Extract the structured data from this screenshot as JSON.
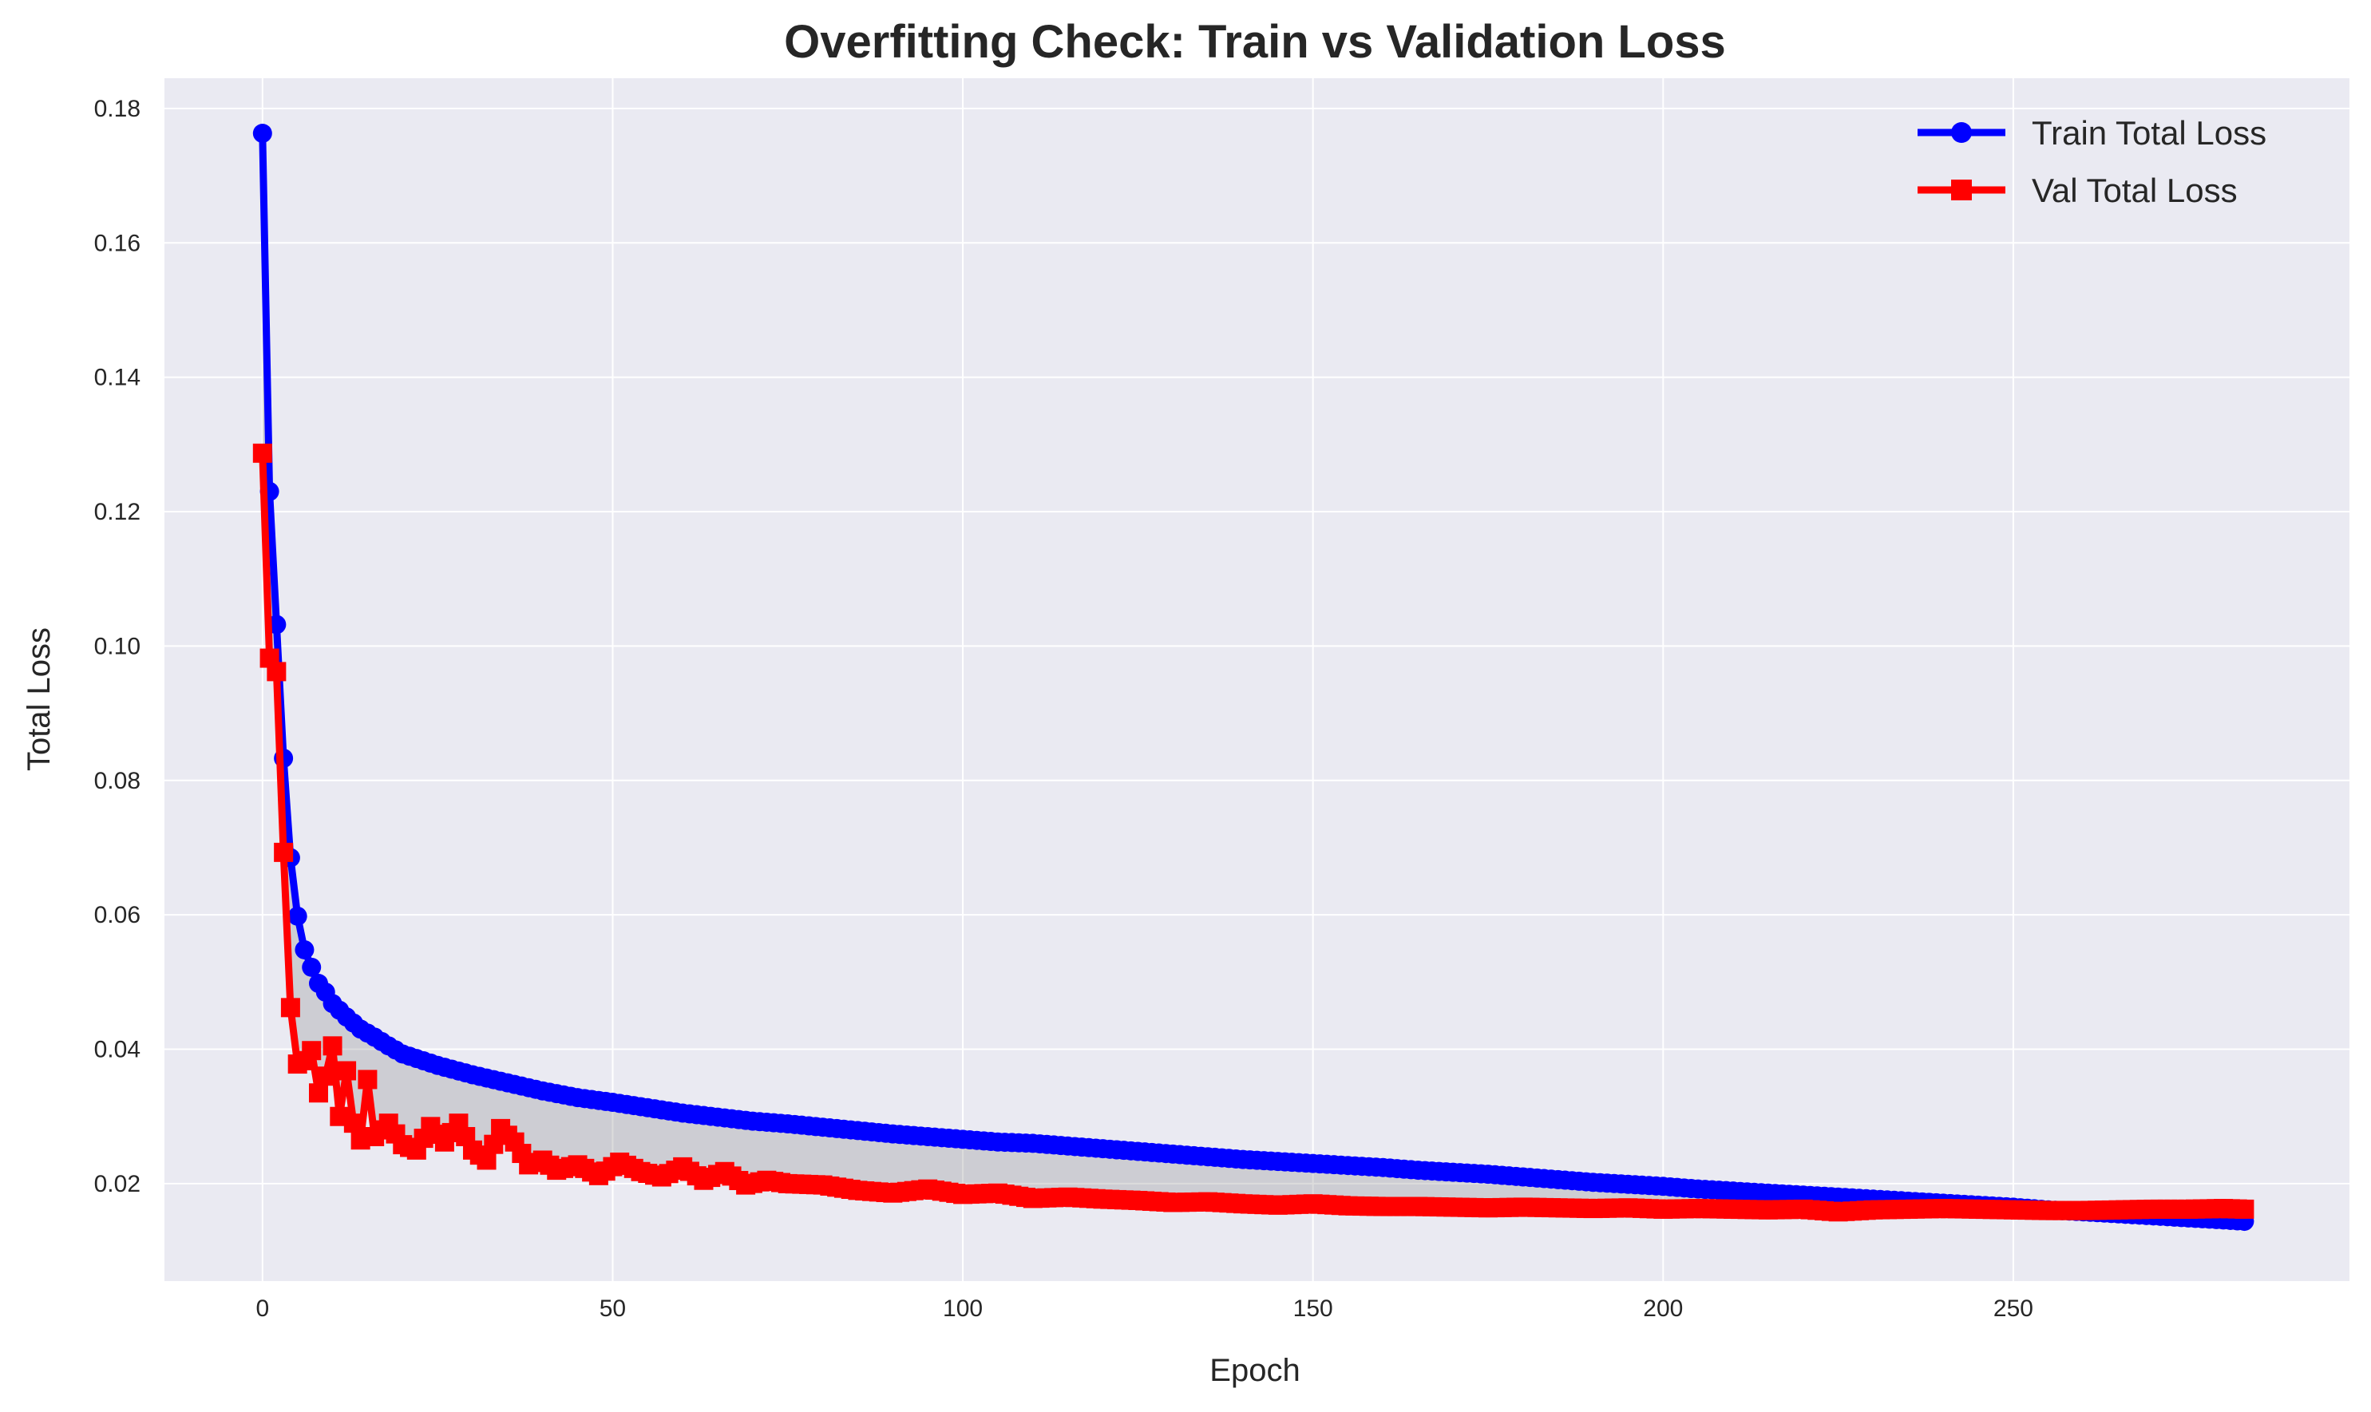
{
  "chart_data": {
    "type": "line",
    "title": "Overfitting Check: Train vs Validation Loss",
    "xlabel": "Epoch",
    "ylabel": "Total Loss",
    "xlim": [
      -14,
      298
    ],
    "ylim": [
      0.0055,
      0.1845
    ],
    "xticks": [
      0,
      50,
      100,
      150,
      200,
      250
    ],
    "yticks": [
      0.02,
      0.04,
      0.06,
      0.08,
      0.1,
      0.12,
      0.14,
      0.16,
      0.18
    ],
    "ytick_labels": [
      "0.02",
      "0.04",
      "0.06",
      "0.08",
      "0.10",
      "0.12",
      "0.14",
      "0.16",
      "0.18"
    ],
    "grid": true,
    "legend_position": "top-right",
    "fill_between": true,
    "series": [
      {
        "name": "Train Total Loss",
        "color": "#0000ff",
        "marker": "circle",
        "points": [
          [
            0,
            0.1763
          ],
          [
            1,
            0.123
          ],
          [
            2,
            0.1032
          ],
          [
            3,
            0.0833
          ],
          [
            4,
            0.0685
          ],
          [
            5,
            0.0598
          ],
          [
            6,
            0.0548
          ],
          [
            7,
            0.0522
          ],
          [
            8,
            0.0498
          ],
          [
            9,
            0.0485
          ],
          [
            10,
            0.0468
          ],
          [
            12,
            0.0448
          ],
          [
            14,
            0.043
          ],
          [
            16,
            0.0418
          ],
          [
            18,
            0.0405
          ],
          [
            20,
            0.0393
          ],
          [
            25,
            0.0376
          ],
          [
            30,
            0.0362
          ],
          [
            35,
            0.035
          ],
          [
            40,
            0.0338
          ],
          [
            45,
            0.0328
          ],
          [
            50,
            0.0321
          ],
          [
            55,
            0.0313
          ],
          [
            60,
            0.0305
          ],
          [
            65,
            0.0299
          ],
          [
            70,
            0.0293
          ],
          [
            75,
            0.0289
          ],
          [
            80,
            0.0284
          ],
          [
            85,
            0.0279
          ],
          [
            90,
            0.0274
          ],
          [
            95,
            0.027
          ],
          [
            100,
            0.0266
          ],
          [
            105,
            0.0262
          ],
          [
            110,
            0.026
          ],
          [
            115,
            0.0256
          ],
          [
            120,
            0.0252
          ],
          [
            125,
            0.0248
          ],
          [
            130,
            0.0244
          ],
          [
            135,
            0.024
          ],
          [
            140,
            0.0236
          ],
          [
            145,
            0.0233
          ],
          [
            150,
            0.023
          ],
          [
            155,
            0.0227
          ],
          [
            160,
            0.0224
          ],
          [
            165,
            0.022
          ],
          [
            170,
            0.0217
          ],
          [
            175,
            0.0214
          ],
          [
            180,
            0.021
          ],
          [
            185,
            0.0206
          ],
          [
            190,
            0.0202
          ],
          [
            195,
            0.0199
          ],
          [
            200,
            0.0196
          ],
          [
            205,
            0.0192
          ],
          [
            210,
            0.0189
          ],
          [
            215,
            0.0186
          ],
          [
            220,
            0.0183
          ],
          [
            225,
            0.018
          ],
          [
            230,
            0.0177
          ],
          [
            235,
            0.0174
          ],
          [
            240,
            0.0171
          ],
          [
            245,
            0.0168
          ],
          [
            250,
            0.0165
          ],
          [
            255,
            0.0161
          ],
          [
            260,
            0.0158
          ],
          [
            265,
            0.0155
          ],
          [
            270,
            0.0152
          ],
          [
            275,
            0.0149
          ],
          [
            280,
            0.0146
          ],
          [
            283,
            0.0144
          ]
        ]
      },
      {
        "name": "Val Total Loss",
        "color": "#ff0000",
        "marker": "square",
        "points": [
          [
            0,
            0.1287
          ],
          [
            1,
            0.0982
          ],
          [
            2,
            0.0962
          ],
          [
            3,
            0.0693
          ],
          [
            4,
            0.0462
          ],
          [
            5,
            0.0378
          ],
          [
            6,
            0.0383
          ],
          [
            7,
            0.0398
          ],
          [
            8,
            0.0335
          ],
          [
            9,
            0.036
          ],
          [
            10,
            0.0405
          ],
          [
            11,
            0.03
          ],
          [
            12,
            0.0368
          ],
          [
            13,
            0.029
          ],
          [
            14,
            0.0265
          ],
          [
            15,
            0.0355
          ],
          [
            16,
            0.027
          ],
          [
            18,
            0.029
          ],
          [
            20,
            0.0258
          ],
          [
            22,
            0.025
          ],
          [
            24,
            0.0285
          ],
          [
            26,
            0.0262
          ],
          [
            28,
            0.029
          ],
          [
            30,
            0.025
          ],
          [
            32,
            0.0235
          ],
          [
            34,
            0.0282
          ],
          [
            36,
            0.0262
          ],
          [
            38,
            0.0228
          ],
          [
            40,
            0.0235
          ],
          [
            42,
            0.022
          ],
          [
            45,
            0.0228
          ],
          [
            48,
            0.0212
          ],
          [
            51,
            0.0232
          ],
          [
            54,
            0.0218
          ],
          [
            57,
            0.021
          ],
          [
            60,
            0.0225
          ],
          [
            63,
            0.0205
          ],
          [
            66,
            0.0218
          ],
          [
            69,
            0.0198
          ],
          [
            72,
            0.0205
          ],
          [
            75,
            0.02
          ],
          [
            80,
            0.0198
          ],
          [
            85,
            0.019
          ],
          [
            90,
            0.0186
          ],
          [
            95,
            0.0192
          ],
          [
            100,
            0.0184
          ],
          [
            105,
            0.0186
          ],
          [
            110,
            0.0178
          ],
          [
            115,
            0.018
          ],
          [
            120,
            0.0177
          ],
          [
            125,
            0.0175
          ],
          [
            130,
            0.0172
          ],
          [
            135,
            0.0173
          ],
          [
            140,
            0.017
          ],
          [
            145,
            0.0168
          ],
          [
            150,
            0.017
          ],
          [
            155,
            0.0167
          ],
          [
            160,
            0.0166
          ],
          [
            165,
            0.0166
          ],
          [
            170,
            0.0165
          ],
          [
            175,
            0.0164
          ],
          [
            180,
            0.0165
          ],
          [
            185,
            0.0164
          ],
          [
            190,
            0.0163
          ],
          [
            195,
            0.0164
          ],
          [
            200,
            0.0162
          ],
          [
            205,
            0.0163
          ],
          [
            210,
            0.0162
          ],
          [
            215,
            0.0161
          ],
          [
            220,
            0.0162
          ],
          [
            225,
            0.0158
          ],
          [
            230,
            0.0161
          ],
          [
            235,
            0.0162
          ],
          [
            240,
            0.0163
          ],
          [
            245,
            0.0162
          ],
          [
            250,
            0.0161
          ],
          [
            255,
            0.016
          ],
          [
            260,
            0.016
          ],
          [
            265,
            0.0161
          ],
          [
            270,
            0.0162
          ],
          [
            275,
            0.0162
          ],
          [
            280,
            0.0163
          ],
          [
            283,
            0.0162
          ]
        ]
      }
    ]
  }
}
